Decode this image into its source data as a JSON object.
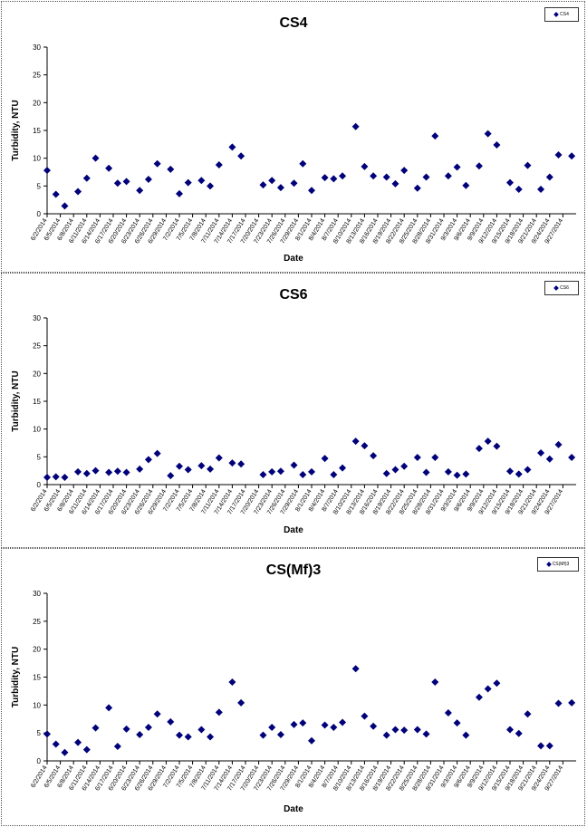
{
  "chart_data": [
    {
      "type": "scatter",
      "title": "CS4",
      "xlabel": "Date",
      "ylabel": "Turbidity, NTU",
      "ylim": [
        0,
        30
      ],
      "yticks": [
        0,
        5,
        10,
        15,
        20,
        25,
        30
      ],
      "legend": "CS4",
      "legend_position": "top-right",
      "marker_color": "#00007a",
      "x_tick_labels": [
        "6/2/2014",
        "6/5/2014",
        "6/8/2014",
        "6/11/2014",
        "6/14/2014",
        "6/17/2014",
        "6/20/2014",
        "6/23/2014",
        "6/26/2014",
        "6/29/2014",
        "7/2/2014",
        "7/5/2014",
        "7/8/2014",
        "7/11/2014",
        "7/14/2014",
        "7/17/2014",
        "7/20/2014",
        "7/23/2014",
        "7/26/2014",
        "7/29/2014",
        "8/1/2014",
        "8/4/2014",
        "8/7/2014",
        "8/10/2014",
        "8/13/2014",
        "8/16/2014",
        "8/19/2014",
        "8/22/2014",
        "8/25/2014",
        "8/28/2014",
        "8/31/2014",
        "9/3/2014",
        "9/6/2014",
        "9/9/2014",
        "9/12/2014",
        "9/15/2014",
        "9/18/2014",
        "9/21/2014",
        "9/24/2014",
        "9/27/2014"
      ],
      "series": [
        {
          "x": [
            "6/2/2014",
            "6/4/2014",
            "6/6/2014",
            "6/9/2014",
            "6/11/2014",
            "6/13/2014",
            "6/16/2014",
            "6/18/2014",
            "6/20/2014",
            "6/23/2014",
            "6/25/2014",
            "6/27/2014",
            "6/30/2014",
            "7/2/2014",
            "7/4/2014",
            "7/7/2014",
            "7/9/2014",
            "7/11/2014",
            "7/14/2014",
            "7/16/2014",
            "7/21/2014",
            "7/23/2014",
            "7/25/2014",
            "7/28/2014",
            "7/30/2014",
            "8/1/2014",
            "8/4/2014",
            "8/6/2014",
            "8/8/2014",
            "8/11/2014",
            "8/13/2014",
            "8/15/2014",
            "8/18/2014",
            "8/20/2014",
            "8/22/2014",
            "8/25/2014",
            "8/27/2014",
            "8/29/2014",
            "9/1/2014",
            "9/3/2014",
            "9/5/2014",
            "9/8/2014",
            "9/10/2014",
            "9/12/2014",
            "9/15/2014",
            "9/17/2014",
            "9/19/2014",
            "9/22/2014",
            "9/24/2014",
            "9/26/2014",
            "9/29/2014"
          ],
          "y": [
            7.8,
            3.5,
            1.4,
            4,
            6.4,
            10,
            8.2,
            5.5,
            5.8,
            4.2,
            6.2,
            9,
            8,
            3.6,
            5.6,
            6,
            5,
            8.8,
            12,
            10.4,
            5.2,
            6,
            4.7,
            5.5,
            9,
            4.2,
            6.5,
            6.3,
            6.8,
            15.7,
            8.5,
            6.8,
            6.6,
            5.4,
            7.8,
            4.6,
            6.6,
            14,
            6.8,
            8.4,
            5.1,
            8.6,
            14.4,
            12.4,
            5.6,
            4.4,
            8.7,
            4.4,
            6.6,
            10.6,
            10.4
          ]
        }
      ]
    },
    {
      "type": "scatter",
      "title": "CS6",
      "xlabel": "Date",
      "ylabel": "Turbidity, NTU",
      "ylim": [
        0,
        30
      ],
      "yticks": [
        0,
        5,
        10,
        15,
        20,
        25,
        30
      ],
      "legend": "CS6",
      "legend_position": "top-right",
      "marker_color": "#00007a",
      "x_tick_labels": [
        "6/2/2014",
        "6/5/2014",
        "6/8/2014",
        "6/11/2014",
        "6/14/2014",
        "6/17/2014",
        "6/20/2014",
        "6/23/2014",
        "6/26/2014",
        "6/29/2014",
        "7/2/2014",
        "7/5/2014",
        "7/8/2014",
        "7/11/2014",
        "7/14/2014",
        "7/17/2014",
        "7/20/2014",
        "7/23/2014",
        "7/26/2014",
        "7/29/2014",
        "8/1/2014",
        "8/4/2014",
        "8/7/2014",
        "8/10/2014",
        "8/13/2014",
        "8/16/2014",
        "8/19/2014",
        "8/22/2014",
        "8/25/2014",
        "8/28/2014",
        "8/31/2014",
        "9/3/2014",
        "9/6/2014",
        "9/9/2014",
        "9/12/2014",
        "9/15/2014",
        "9/18/2014",
        "9/21/2014",
        "9/24/2014",
        "9/27/2014"
      ],
      "series": [
        {
          "x": [
            "6/2/2014",
            "6/4/2014",
            "6/6/2014",
            "6/9/2014",
            "6/11/2014",
            "6/13/2014",
            "6/16/2014",
            "6/18/2014",
            "6/20/2014",
            "6/23/2014",
            "6/25/2014",
            "6/27/2014",
            "6/30/2014",
            "7/2/2014",
            "7/4/2014",
            "7/7/2014",
            "7/9/2014",
            "7/11/2014",
            "7/14/2014",
            "7/16/2014",
            "7/21/2014",
            "7/23/2014",
            "7/25/2014",
            "7/28/2014",
            "7/30/2014",
            "8/1/2014",
            "8/4/2014",
            "8/6/2014",
            "8/8/2014",
            "8/11/2014",
            "8/13/2014",
            "8/15/2014",
            "8/18/2014",
            "8/20/2014",
            "8/22/2014",
            "8/25/2014",
            "8/27/2014",
            "8/29/2014",
            "9/1/2014",
            "9/3/2014",
            "9/5/2014",
            "9/8/2014",
            "9/10/2014",
            "9/12/2014",
            "9/15/2014",
            "9/17/2014",
            "9/19/2014",
            "9/22/2014",
            "9/24/2014",
            "9/26/2014",
            "9/29/2014"
          ],
          "y": [
            1.3,
            1.4,
            1.3,
            2.3,
            2,
            2.5,
            2.2,
            2.4,
            2.2,
            2.8,
            4.5,
            5.6,
            1.6,
            3.3,
            2.7,
            3.4,
            2.8,
            4.8,
            3.9,
            3.7,
            1.8,
            2.3,
            2.4,
            3.5,
            1.8,
            2.3,
            4.7,
            1.8,
            3,
            7.8,
            7,
            5.2,
            2,
            2.7,
            3.3,
            4.9,
            2.2,
            4.9,
            2.3,
            1.7,
            1.9,
            6.5,
            7.8,
            6.9,
            2.4,
            1.9,
            2.7,
            5.7,
            4.6,
            7.2,
            4.9
          ]
        }
      ]
    },
    {
      "type": "scatter",
      "title": "CS(Mf)3",
      "xlabel": "Date",
      "ylabel": "Turbidity, NTU",
      "ylim": [
        0,
        30
      ],
      "yticks": [
        0,
        5,
        10,
        15,
        20,
        25,
        30
      ],
      "legend": "CS(Mf)3",
      "legend_position": "top-right",
      "marker_color": "#00007a",
      "x_tick_labels": [
        "6/2/2014",
        "6/5/2014",
        "6/8/2014",
        "6/11/2014",
        "6/14/2014",
        "6/17/2014",
        "6/20/2014",
        "6/23/2014",
        "6/26/2014",
        "6/29/2014",
        "7/2/2014",
        "7/5/2014",
        "7/8/2014",
        "7/11/2014",
        "7/14/2014",
        "7/17/2014",
        "7/20/2014",
        "7/23/2014",
        "7/26/2014",
        "7/29/2014",
        "8/1/2014",
        "8/4/2014",
        "8/7/2014",
        "8/10/2014",
        "8/13/2014",
        "8/16/2014",
        "8/19/2014",
        "8/22/2014",
        "8/25/2014",
        "8/28/2014",
        "8/31/2014",
        "9/3/2014",
        "9/6/2014",
        "9/9/2014",
        "9/12/2014",
        "9/15/2014",
        "9/18/2014",
        "9/21/2014",
        "9/24/2014",
        "9/27/2014"
      ],
      "series": [
        {
          "x": [
            "6/2/2014",
            "6/4/2014",
            "6/6/2014",
            "6/9/2014",
            "6/11/2014",
            "6/13/2014",
            "6/16/2014",
            "6/18/2014",
            "6/20/2014",
            "6/23/2014",
            "6/25/2014",
            "6/27/2014",
            "6/30/2014",
            "7/2/2014",
            "7/4/2014",
            "7/7/2014",
            "7/9/2014",
            "7/11/2014",
            "7/14/2014",
            "7/16/2014",
            "7/21/2014",
            "7/23/2014",
            "7/25/2014",
            "7/28/2014",
            "7/30/2014",
            "8/1/2014",
            "8/4/2014",
            "8/6/2014",
            "8/8/2014",
            "8/11/2014",
            "8/13/2014",
            "8/15/2014",
            "8/18/2014",
            "8/20/2014",
            "8/22/2014",
            "8/25/2014",
            "8/27/2014",
            "8/29/2014",
            "9/1/2014",
            "9/3/2014",
            "9/5/2014",
            "9/8/2014",
            "9/10/2014",
            "9/12/2014",
            "9/15/2014",
            "9/17/2014",
            "9/19/2014",
            "9/22/2014",
            "9/24/2014",
            "9/26/2014",
            "9/29/2014"
          ],
          "y": [
            4.8,
            3,
            1.5,
            3.3,
            2,
            5.9,
            9.5,
            2.6,
            5.7,
            4.7,
            6,
            8.4,
            7,
            4.6,
            4.3,
            5.6,
            4.3,
            8.7,
            14.1,
            10.4,
            4.6,
            6,
            4.7,
            6.5,
            6.8,
            3.6,
            6.4,
            6,
            6.9,
            16.5,
            8,
            6.2,
            4.6,
            5.6,
            5.5,
            5.6,
            4.8,
            14.1,
            8.6,
            6.8,
            4.6,
            11.4,
            12.9,
            13.9,
            5.6,
            4.9,
            8.4,
            2.7,
            2.7,
            10.3,
            10.4
          ]
        }
      ]
    }
  ]
}
